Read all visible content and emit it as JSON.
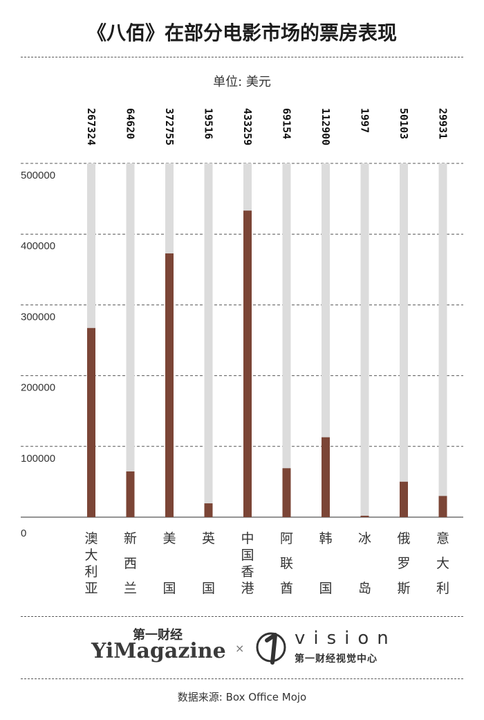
{
  "title": "《八佰》在部分电影市场的票房表现",
  "unit_label": "单位: 美元",
  "source": "数据来源: Box Office Mojo",
  "logos": {
    "left_cn": "第一财经",
    "left_en": "YiMagazine",
    "separator": "×",
    "right_en": "vision",
    "right_cn": "第一财经视觉中心"
  },
  "colors": {
    "bar": "#7b4536",
    "track": "#dcdcdc",
    "grid": "#555555"
  },
  "chart_data": {
    "type": "bar",
    "categories": [
      "澳大利亚",
      "新西兰",
      "美国",
      "英国",
      "中国香港",
      "阿联酋",
      "韩国",
      "冰岛",
      "俄罗斯",
      "意大利"
    ],
    "values": [
      267324,
      64620,
      372755,
      19516,
      433259,
      69154,
      112900,
      1997,
      50103,
      29931
    ],
    "value_labels": [
      "267324",
      "64620",
      "372755",
      "19516",
      "433259",
      "69154",
      "112900",
      "1997",
      "50103",
      "29931"
    ],
    "ylim": [
      0,
      500000
    ],
    "yticks": [
      0,
      100000,
      200000,
      300000,
      400000,
      500000
    ],
    "ytick_labels": [
      "0",
      "100000",
      "200000",
      "300000",
      "400000",
      "500000"
    ],
    "grid": true,
    "legend": "none"
  }
}
